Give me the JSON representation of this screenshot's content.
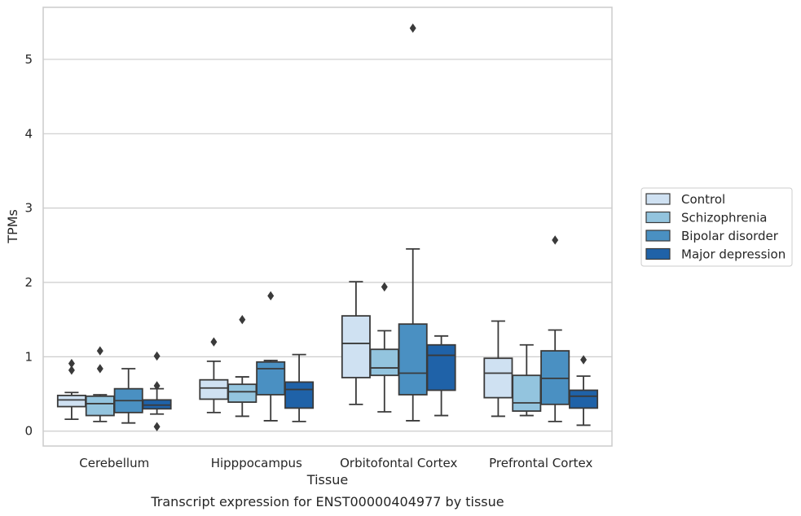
{
  "chart_data": {
    "type": "box",
    "xlabel": "Tissue",
    "ylabel": "TPMs",
    "caption": "Transcript expression for ENST00000404977 by tissue",
    "ylim": [
      -0.2,
      5.7
    ],
    "yticks": [
      0,
      1,
      2,
      3,
      4,
      5
    ],
    "grid": "horizontal",
    "legend_position": "right",
    "categories": [
      "Cerebellum",
      "Hipppocampus",
      "Orbitofontal Cortex",
      "Prefrontal Cortex"
    ],
    "series": [
      {
        "name": "Control",
        "color": "#cfe1f2",
        "boxes": [
          {
            "whislo": 0.16,
            "q1": 0.33,
            "med": 0.42,
            "q3": 0.48,
            "whishi": 0.52,
            "fliers": [
              0.82,
              0.91
            ]
          },
          {
            "whislo": 0.25,
            "q1": 0.43,
            "med": 0.58,
            "q3": 0.69,
            "whishi": 0.94,
            "fliers": [
              1.2
            ]
          },
          {
            "whislo": 0.36,
            "q1": 0.72,
            "med": 1.18,
            "q3": 1.55,
            "whishi": 2.01,
            "fliers": []
          },
          {
            "whislo": 0.2,
            "q1": 0.45,
            "med": 0.78,
            "q3": 0.98,
            "whishi": 1.48,
            "fliers": []
          }
        ]
      },
      {
        "name": "Schizophrenia",
        "color": "#93c4de",
        "boxes": [
          {
            "whislo": 0.13,
            "q1": 0.21,
            "med": 0.37,
            "q3": 0.47,
            "whishi": 0.49,
            "fliers": [
              0.84,
              1.08
            ]
          },
          {
            "whislo": 0.2,
            "q1": 0.39,
            "med": 0.53,
            "q3": 0.63,
            "whishi": 0.73,
            "fliers": [
              1.5
            ]
          },
          {
            "whislo": 0.26,
            "q1": 0.75,
            "med": 0.85,
            "q3": 1.1,
            "whishi": 1.35,
            "fliers": [
              1.94
            ]
          },
          {
            "whislo": 0.21,
            "q1": 0.27,
            "med": 0.38,
            "q3": 0.75,
            "whishi": 1.16,
            "fliers": []
          }
        ]
      },
      {
        "name": "Bipolar disorder",
        "color": "#4a90c2",
        "boxes": [
          {
            "whislo": 0.11,
            "q1": 0.25,
            "med": 0.41,
            "q3": 0.57,
            "whishi": 0.84,
            "fliers": []
          },
          {
            "whislo": 0.14,
            "q1": 0.49,
            "med": 0.84,
            "q3": 0.93,
            "whishi": 0.95,
            "fliers": [
              1.82
            ]
          },
          {
            "whislo": 0.14,
            "q1": 0.49,
            "med": 0.78,
            "q3": 1.44,
            "whishi": 2.45,
            "fliers": [
              5.42
            ]
          },
          {
            "whislo": 0.13,
            "q1": 0.36,
            "med": 0.71,
            "q3": 1.08,
            "whishi": 1.36,
            "fliers": [
              2.57
            ]
          }
        ]
      },
      {
        "name": "Major depression",
        "color": "#1f62a8",
        "boxes": [
          {
            "whislo": 0.23,
            "q1": 0.3,
            "med": 0.35,
            "q3": 0.42,
            "whishi": 0.57,
            "fliers": [
              0.06,
              0.61,
              1.01
            ]
          },
          {
            "whislo": 0.13,
            "q1": 0.31,
            "med": 0.56,
            "q3": 0.66,
            "whishi": 1.03,
            "fliers": []
          },
          {
            "whislo": 0.21,
            "q1": 0.55,
            "med": 1.02,
            "q3": 1.16,
            "whishi": 1.28,
            "fliers": []
          },
          {
            "whislo": 0.08,
            "q1": 0.31,
            "med": 0.47,
            "q3": 0.55,
            "whishi": 0.74,
            "fliers": [
              0.96
            ]
          }
        ]
      }
    ]
  }
}
